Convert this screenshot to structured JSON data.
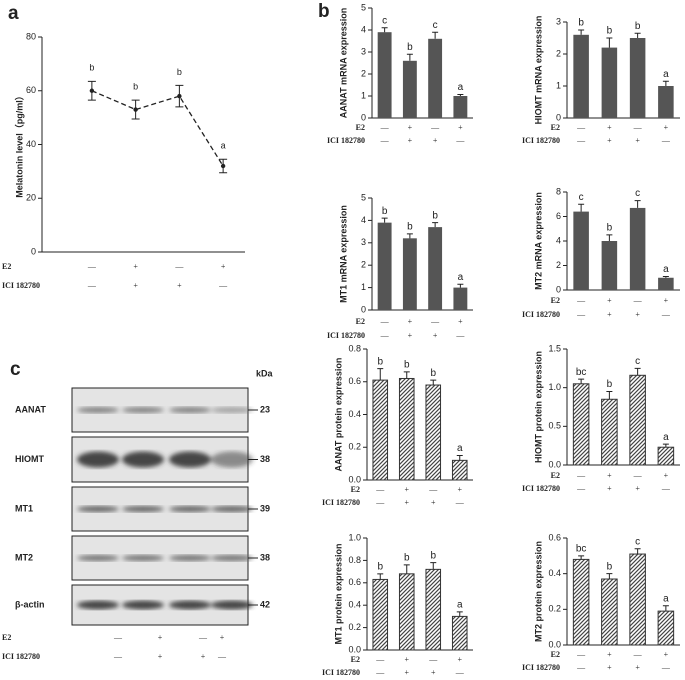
{
  "treatments": {
    "labels": [
      "E2",
      "ICI 182780"
    ],
    "rows": [
      [
        "—",
        "+",
        "—",
        "+"
      ],
      [
        "—",
        "+",
        "+",
        "—"
      ]
    ]
  },
  "blot": {
    "panel": "c",
    "unit": "kDa",
    "rows": [
      {
        "label": "AANAT",
        "size": 23
      },
      {
        "label": "HIOMT",
        "size": 38
      },
      {
        "label": "MT1",
        "size": 39
      },
      {
        "label": "MT2",
        "size": 38
      },
      {
        "label": "β-actin",
        "size": 42
      }
    ]
  },
  "chart_data": [
    {
      "type": "line",
      "panel": "a",
      "ylabel": "Melatonin level（pg/ml）",
      "ylim": [
        0,
        80
      ],
      "yticks": [
        0,
        20,
        40,
        60,
        80
      ],
      "values": [
        60,
        53,
        58,
        32
      ],
      "errors": [
        3.5,
        3.5,
        4,
        2.5
      ],
      "letters": [
        "b",
        "b",
        "b",
        "a"
      ],
      "color": "#222"
    },
    {
      "type": "bar",
      "panel": "b",
      "ylabel": "AANAT mRNA expression",
      "ylim": [
        0,
        5
      ],
      "yticks": [
        0,
        1,
        2,
        3,
        4,
        5
      ],
      "values": [
        3.9,
        2.6,
        3.6,
        1.0
      ],
      "errors": [
        0.2,
        0.3,
        0.3,
        0.07
      ],
      "letters": [
        "c",
        "b",
        "c",
        "a"
      ],
      "color": "#555",
      "hatch": false
    },
    {
      "type": "bar",
      "ylabel": "HIOMT mRNA expression",
      "ylim": [
        0,
        3
      ],
      "yticks": [
        0,
        1,
        2,
        3
      ],
      "values": [
        2.6,
        2.2,
        2.5,
        1.0
      ],
      "errors": [
        0.15,
        0.3,
        0.15,
        0.15
      ],
      "letters": [
        "b",
        "b",
        "b",
        "a"
      ],
      "color": "#555",
      "hatch": false
    },
    {
      "type": "bar",
      "ylabel": "MT1 mRNA expression",
      "ylim": [
        0,
        5
      ],
      "yticks": [
        0,
        1,
        2,
        3,
        4,
        5
      ],
      "values": [
        3.9,
        3.2,
        3.7,
        1.0
      ],
      "errors": [
        0.2,
        0.2,
        0.2,
        0.15
      ],
      "letters": [
        "b",
        "b",
        "b",
        "a"
      ],
      "color": "#555",
      "hatch": false
    },
    {
      "type": "bar",
      "ylabel": "MT2 mRNA expression",
      "ylim": [
        0,
        8
      ],
      "yticks": [
        0,
        2,
        4,
        6,
        8
      ],
      "values": [
        6.4,
        4.0,
        6.7,
        1.0
      ],
      "errors": [
        0.6,
        0.5,
        0.6,
        0.1
      ],
      "letters": [
        "c",
        "b",
        "c",
        "a"
      ],
      "color": "#555",
      "hatch": false
    },
    {
      "type": "bar",
      "ylabel": "AANAT protein expression",
      "ylim": [
        0,
        0.8
      ],
      "yticks": [
        {
          "value": 0,
          "label": "0.0"
        },
        0.2,
        0.4,
        0.6,
        0.8
      ],
      "values": [
        0.61,
        0.62,
        0.58,
        0.12
      ],
      "errors": [
        0.07,
        0.04,
        0.03,
        0.03
      ],
      "letters": [
        "b",
        "b",
        "b",
        "a"
      ],
      "color": "#555",
      "hatch": true
    },
    {
      "type": "bar",
      "ylabel": "HIOMT protein expression",
      "ylim": [
        0,
        1.5
      ],
      "yticks": [
        {
          "value": 0,
          "label": "0.0"
        },
        0.5,
        {
          "value": 1,
          "label": "1.0"
        },
        1.5
      ],
      "values": [
        1.05,
        0.85,
        1.16,
        0.23
      ],
      "errors": [
        0.06,
        0.1,
        0.09,
        0.04
      ],
      "letters": [
        "bc",
        "b",
        "c",
        "a"
      ],
      "color": "#555",
      "hatch": true
    },
    {
      "type": "bar",
      "ylabel": "MT1 protein expression",
      "ylim": [
        0,
        1
      ],
      "yticks": [
        {
          "value": 0,
          "label": "0.0"
        },
        0.2,
        0.4,
        0.6,
        0.8,
        {
          "value": 1,
          "label": "1.0"
        }
      ],
      "values": [
        0.63,
        0.68,
        0.72,
        0.3
      ],
      "errors": [
        0.05,
        0.08,
        0.06,
        0.04
      ],
      "letters": [
        "b",
        "b",
        "b",
        "a"
      ],
      "color": "#555",
      "hatch": true
    },
    {
      "type": "bar",
      "ylabel": "MT2 protein expression",
      "ylim": [
        0,
        0.6
      ],
      "yticks": [
        {
          "value": 0,
          "label": "0.0"
        },
        0.2,
        0.4,
        0.6
      ],
      "values": [
        0.48,
        0.37,
        0.51,
        0.19
      ],
      "errors": [
        0.02,
        0.03,
        0.03,
        0.03
      ],
      "letters": [
        "bc",
        "b",
        "c",
        "a"
      ],
      "color": "#555",
      "hatch": true
    }
  ]
}
